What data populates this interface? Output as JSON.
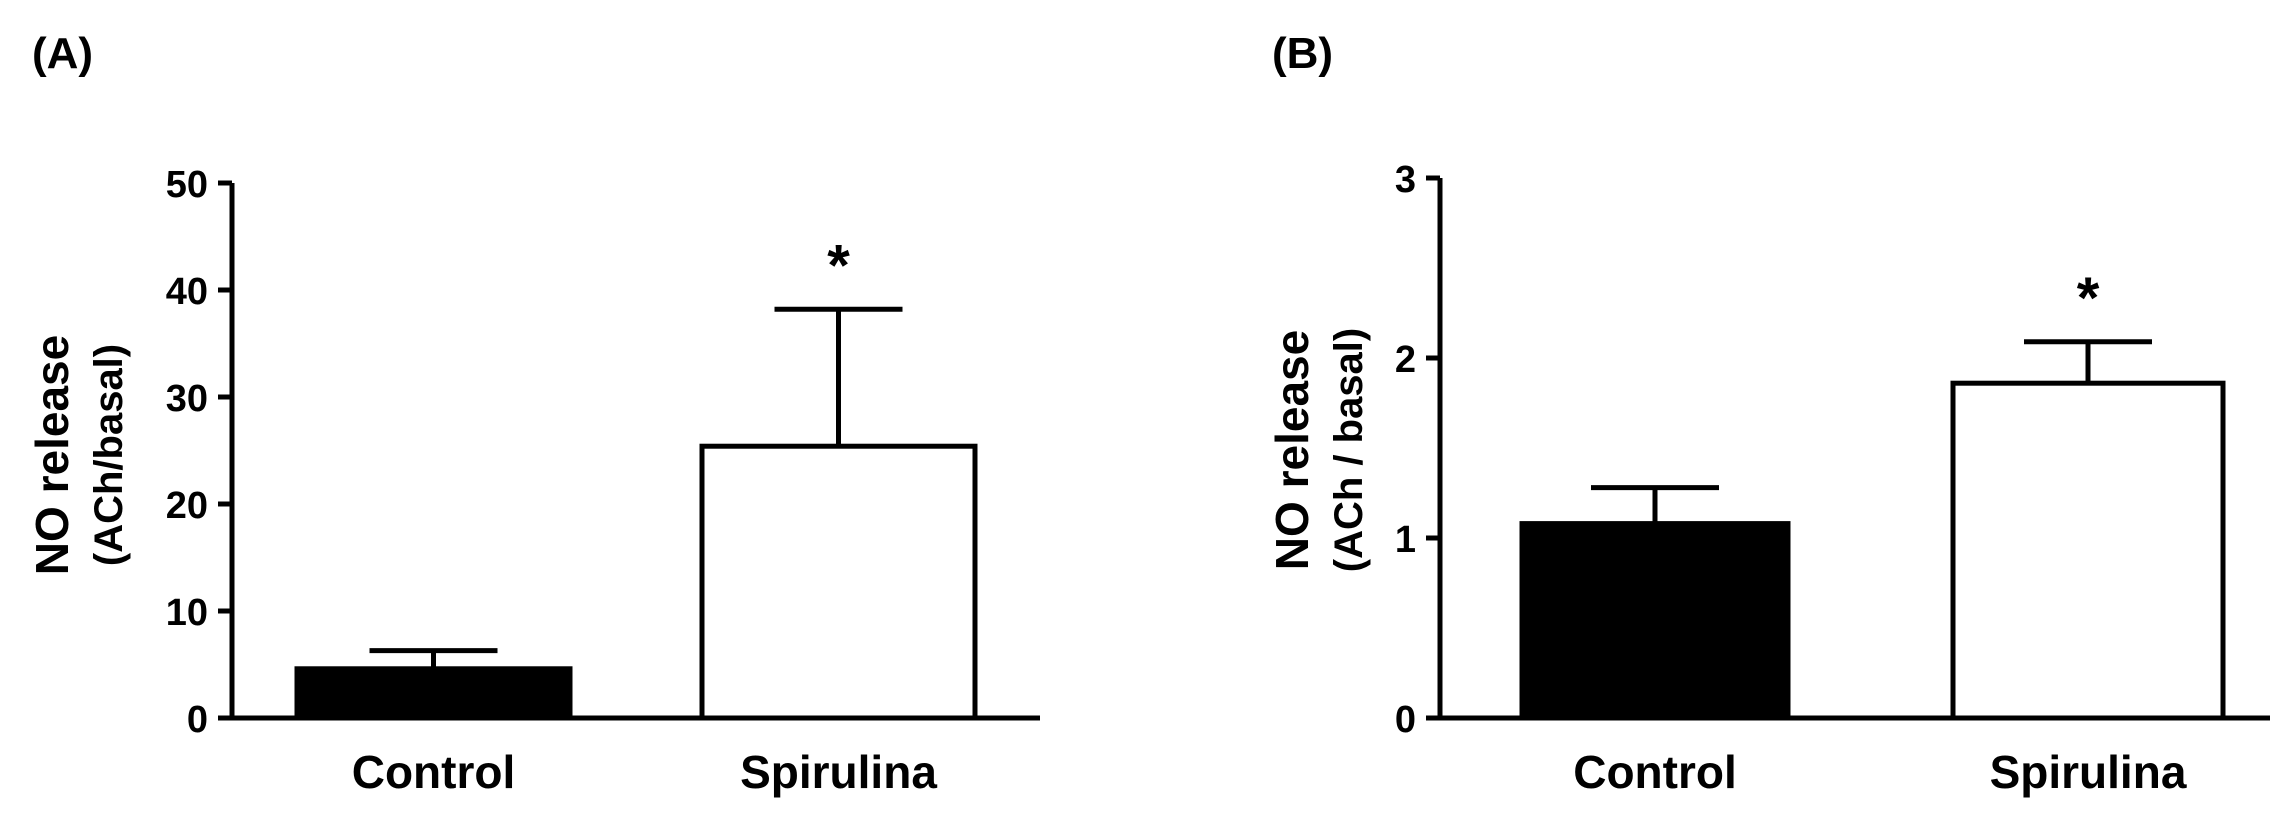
{
  "chart_data": [
    {
      "panel_label": "(A)",
      "type": "bar",
      "categories": [
        "Control",
        "Spirulina"
      ],
      "values": [
        4.6,
        25.4
      ],
      "errors": [
        1.7,
        12.8
      ],
      "bar_colors": [
        "#000000",
        "#ffffff"
      ],
      "significance": [
        "",
        "*"
      ],
      "ylabel_line1": "NO release",
      "ylabel_line2": "(ACh/basal)",
      "ylim": [
        0,
        50
      ],
      "yticks": [
        0,
        10,
        20,
        30,
        40,
        50
      ],
      "grid": false
    },
    {
      "panel_label": "(B)",
      "type": "bar",
      "categories": [
        "Control",
        "Spirulina"
      ],
      "values": [
        1.08,
        1.86
      ],
      "errors": [
        0.2,
        0.23
      ],
      "bar_colors": [
        "#000000",
        "#ffffff"
      ],
      "significance": [
        "",
        "*"
      ],
      "ylabel_line1": "NO release",
      "ylabel_line2": "(ACh / basal)",
      "ylim": [
        0,
        3
      ],
      "yticks": [
        0,
        1,
        2,
        3
      ],
      "grid": false
    }
  ]
}
